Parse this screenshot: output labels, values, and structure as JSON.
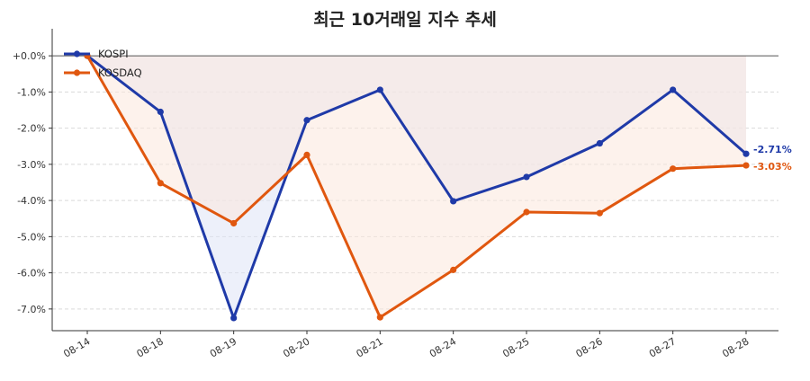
{
  "chart_data": {
    "type": "line",
    "title": "최근 10거래일 지수 추세",
    "categories": [
      "08-14",
      "08-18",
      "08-19",
      "08-20",
      "08-21",
      "08-24",
      "08-25",
      "08-26",
      "08-27",
      "08-28"
    ],
    "series": [
      {
        "name": "KOSPI",
        "color": "#1f3aa8",
        "fill": "#dfe4f5",
        "values": [
          0.0,
          -1.55,
          -7.25,
          -1.78,
          -0.94,
          -4.02,
          -3.35,
          -2.42,
          -0.94,
          -2.71
        ],
        "end_label": "-2.71%"
      },
      {
        "name": "KOSDAQ",
        "color": "#e0570f",
        "fill": "#fbe8dc",
        "values": [
          0.0,
          -3.52,
          -4.63,
          -2.74,
          -7.23,
          -5.92,
          -4.32,
          -4.35,
          -3.12,
          -3.03
        ],
        "end_label": "-3.03%"
      }
    ],
    "y_ticks": [
      "+0.0%",
      "-1.0%",
      "-2.0%",
      "-3.0%",
      "-4.0%",
      "-5.0%",
      "-6.0%",
      "-7.0%"
    ],
    "y_tick_values": [
      0,
      -1,
      -2,
      -3,
      -4,
      -5,
      -6,
      -7
    ],
    "ylim": [
      -7.6,
      0.5
    ],
    "grid": true,
    "legend_position": "top-left",
    "xlabel": "",
    "ylabel": ""
  }
}
